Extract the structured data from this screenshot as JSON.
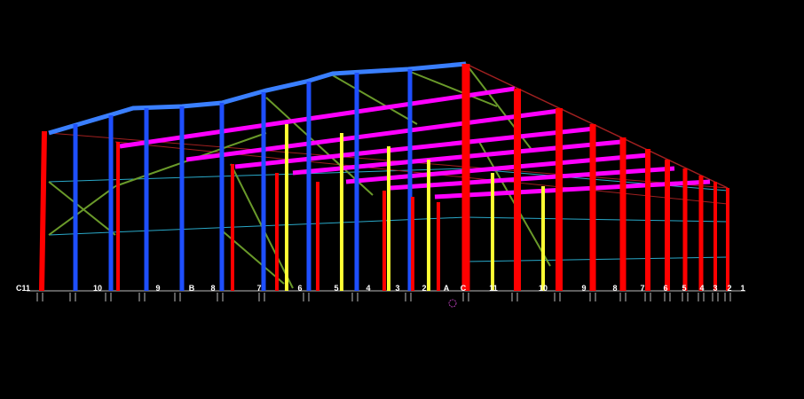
{
  "viewport": {
    "background": "#000000",
    "grid_labels": [
      "C11",
      "10",
      "9",
      "B",
      "8",
      "7",
      "6",
      "5",
      "4",
      "3",
      "2",
      "A",
      "C",
      "11",
      "10",
      "9",
      "8",
      "7",
      "6",
      "5",
      "4",
      "3",
      "2",
      "1"
    ]
  },
  "colors": {
    "column_red": "#ff0000",
    "column_blue": "#1e4fff",
    "column_yellow": "#ffff33",
    "rafter_blue": "#3a7fff",
    "purlin_magenta": "#ff00ff",
    "bracing_green": "#6a9a2a",
    "tie_cyan": "#2aa9c9",
    "tie_darkred": "#a02020",
    "grid_line": "#bbbbbb"
  }
}
